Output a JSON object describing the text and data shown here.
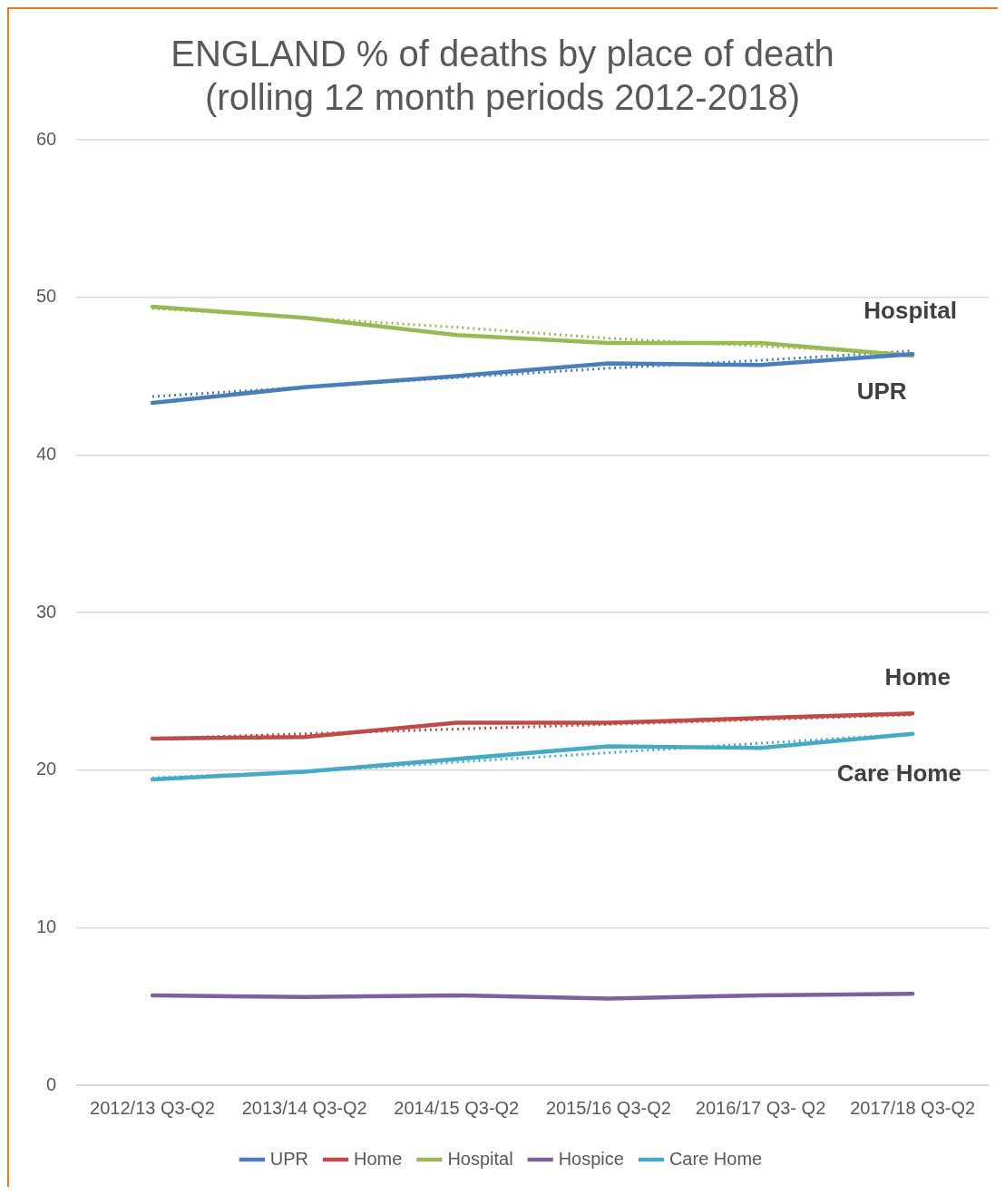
{
  "chart_data": {
    "type": "line",
    "title": "ENGLAND % of deaths by place of death (rolling 12 month periods 2012-2018)",
    "categories": [
      "2012/13 Q3-Q2",
      "2013/14 Q3-Q2",
      "2014/15 Q3-Q2",
      "2015/16 Q3-Q2",
      "2016/17 Q3- Q2",
      "2017/18 Q3-Q2"
    ],
    "series": [
      {
        "name": "UPR",
        "color": "#4a7ebb",
        "values": [
          43.3,
          44.3,
          45.0,
          45.8,
          45.7,
          46.4
        ]
      },
      {
        "name": "Home",
        "color": "#be4b48",
        "values": [
          22.0,
          22.1,
          23.0,
          23.0,
          23.3,
          23.6
        ]
      },
      {
        "name": "Hospital",
        "color": "#98b954",
        "values": [
          49.4,
          48.7,
          47.6,
          47.1,
          47.1,
          46.3
        ]
      },
      {
        "name": "Hospice",
        "color": "#7d60a0",
        "values": [
          5.7,
          5.6,
          5.7,
          5.5,
          5.7,
          5.8
        ]
      },
      {
        "name": "Care Home",
        "color": "#46aac5",
        "values": [
          19.4,
          19.9,
          20.7,
          21.5,
          21.4,
          22.3
        ]
      },
      {
        "type": "line",
        "line_style": "dotted",
        "color": "#4a7ebb",
        "values": [
          43.7,
          44.3,
          44.9,
          45.5,
          46.0,
          46.6
        ]
      },
      {
        "type": "line",
        "line_style": "dotted",
        "color": "#be4b48",
        "values": [
          22.0,
          22.3,
          22.6,
          22.9,
          23.2,
          23.5
        ]
      },
      {
        "type": "line",
        "line_style": "dotted",
        "color": "#98b954",
        "values": [
          49.3,
          48.7,
          48.1,
          47.4,
          46.9,
          46.4
        ]
      },
      {
        "type": "line",
        "line_style": "dotted",
        "color": "#46aac5",
        "values": [
          19.5,
          19.9,
          20.5,
          21.1,
          21.7,
          22.3
        ]
      }
    ],
    "annotations": [
      "Hospital",
      "UPR",
      "Home",
      "Care Home"
    ],
    "ylim": [
      0,
      60
    ],
    "yticks": [
      0,
      10,
      20,
      30,
      40,
      50,
      60
    ],
    "grid": "y",
    "legend": "bottom",
    "marker": "none",
    "line_style": "solid"
  }
}
